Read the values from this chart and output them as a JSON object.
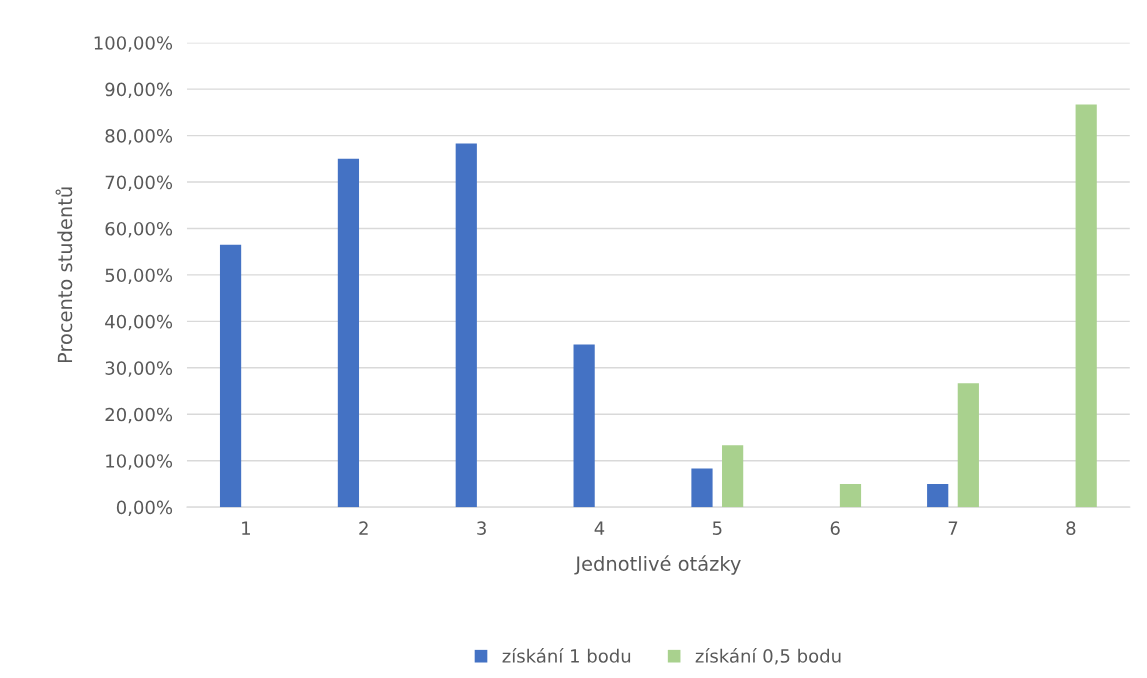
{
  "chart_data": {
    "type": "bar",
    "xlabel": "Jednotlivé otázky",
    "ylabel": "Procento studentů",
    "categories": [
      "1",
      "2",
      "3",
      "4",
      "5",
      "6",
      "7",
      "8"
    ],
    "series": [
      {
        "name": "získání 1 bodu",
        "color": "#4472c4",
        "values": [
          56.5,
          75.0,
          78.3,
          35.0,
          8.3,
          0,
          5.0,
          0
        ]
      },
      {
        "name": "získání 0,5 bodu",
        "color": "#a9d18e",
        "values": [
          0,
          0,
          0,
          0,
          13.3,
          5.0,
          26.7,
          86.7
        ]
      }
    ],
    "ylim": [
      0,
      100
    ],
    "yticks": [
      {
        "value": 0,
        "label": "0,00%"
      },
      {
        "value": 10,
        "label": "10,00%"
      },
      {
        "value": 20,
        "label": "20,00%"
      },
      {
        "value": 30,
        "label": "30,00%"
      },
      {
        "value": 40,
        "label": "40,00%"
      },
      {
        "value": 50,
        "label": "50,00%"
      },
      {
        "value": 60,
        "label": "60,00%"
      },
      {
        "value": 70,
        "label": "70,00%"
      },
      {
        "value": 80,
        "label": "80,00%"
      },
      {
        "value": 90,
        "label": "90,00%"
      },
      {
        "value": 100,
        "label": "100,00%"
      }
    ],
    "grid": "y",
    "legend": "bottom"
  }
}
